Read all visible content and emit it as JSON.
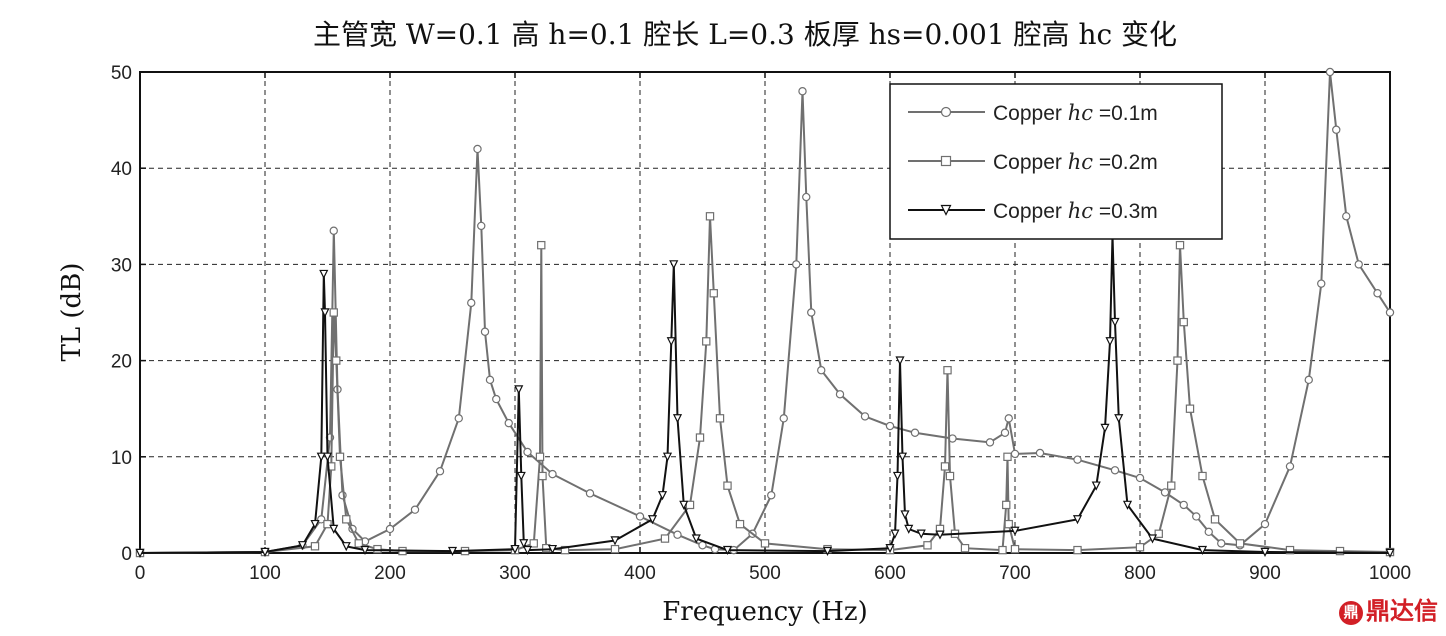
{
  "chart_data": {
    "type": "line",
    "title": "主管宽 W=0.1 高 h=0.1 腔长 L=0.3 板厚 hs=0.001 腔高 hc 变化",
    "xlabel": "Frequency (Hz)",
    "ylabel": "TL (dB)",
    "xlim": [
      0,
      1000
    ],
    "ylim": [
      0,
      50
    ],
    "xticks": [
      "0",
      "100",
      "200",
      "300",
      "400",
      "500",
      "600",
      "700",
      "800",
      "900",
      "1000"
    ],
    "yticks": [
      "0",
      "10",
      "20",
      "30",
      "40",
      "50"
    ],
    "grid": true,
    "legend_position": "top-right",
    "series": [
      {
        "name": "Copper hc =0.1m",
        "legend_prefix": "Copper ",
        "legend_var": "hc",
        "legend_suffix": " =0.1m",
        "marker": "circle",
        "color": "#707070",
        "x": [
          0,
          100,
          130,
          145,
          152,
          155,
          158,
          162,
          170,
          180,
          200,
          220,
          240,
          255,
          265,
          270,
          273,
          276,
          280,
          285,
          295,
          310,
          330,
          360,
          400,
          430,
          450,
          460,
          475,
          490,
          505,
          515,
          525,
          530,
          533,
          537,
          545,
          560,
          580,
          600,
          620,
          650,
          680,
          692,
          695,
          700,
          720,
          750,
          780,
          800,
          820,
          835,
          845,
          855,
          865,
          880,
          900,
          920,
          935,
          945,
          952,
          957,
          965,
          975,
          990,
          1000
        ],
        "y": [
          0,
          0.1,
          0.8,
          3.5,
          12,
          33.5,
          17,
          6,
          2.5,
          1.2,
          2.5,
          4.5,
          8.5,
          14,
          26,
          42,
          34,
          23,
          18,
          16,
          13.5,
          10.5,
          8.2,
          6.2,
          3.8,
          1.9,
          0.8,
          0.4,
          0.3,
          2,
          6,
          14,
          30,
          48,
          37,
          25,
          19,
          16.5,
          14.2,
          13.2,
          12.5,
          11.9,
          11.5,
          12.5,
          14,
          10.3,
          10.4,
          9.7,
          8.6,
          7.8,
          6.3,
          5,
          3.8,
          2.2,
          1,
          0.8,
          3,
          9,
          18,
          28,
          50,
          44,
          35,
          30,
          27,
          25
        ]
      },
      {
        "name": "Copper hc =0.2m",
        "legend_prefix": "Copper ",
        "legend_var": "hc",
        "legend_suffix": " =0.2m",
        "marker": "square",
        "color": "#707070",
        "x": [
          0,
          100,
          140,
          150,
          153,
          155,
          157,
          160,
          165,
          175,
          190,
          210,
          260,
          300,
          315,
          320,
          321,
          322,
          325,
          340,
          380,
          420,
          440,
          448,
          453,
          456,
          459,
          464,
          470,
          480,
          500,
          550,
          600,
          630,
          640,
          644,
          646,
          648,
          652,
          660,
          690,
          693,
          694,
          695,
          700,
          750,
          800,
          815,
          825,
          830,
          832,
          835,
          840,
          850,
          860,
          880,
          920,
          960,
          1000
        ],
        "y": [
          0,
          0.1,
          0.7,
          3,
          9,
          25,
          20,
          10,
          3.5,
          1,
          0.4,
          0.2,
          0.2,
          0.3,
          1,
          10,
          32,
          8,
          0.5,
          0.3,
          0.4,
          1.5,
          5,
          12,
          22,
          35,
          27,
          14,
          7,
          3,
          1,
          0.4,
          0.3,
          0.8,
          2.5,
          9,
          19,
          8,
          2,
          0.5,
          0.3,
          5,
          10,
          3,
          0.4,
          0.3,
          0.6,
          2,
          7,
          20,
          32,
          24,
          15,
          8,
          3.5,
          1,
          0.3,
          0.2,
          0.1
        ]
      },
      {
        "name": "Copper hc =0.3m",
        "legend_prefix": "Copper ",
        "legend_var": "hc",
        "legend_suffix": " =0.3m",
        "marker": "triangle-down",
        "color": "#111111",
        "x": [
          0,
          100,
          130,
          140,
          145,
          147,
          148,
          150,
          155,
          165,
          180,
          250,
          300,
          303,
          305,
          307,
          310,
          330,
          380,
          410,
          418,
          422,
          425,
          427,
          430,
          435,
          445,
          470,
          550,
          600,
          604,
          606,
          608,
          610,
          612,
          615,
          625,
          640,
          700,
          750,
          765,
          772,
          776,
          778,
          780,
          783,
          790,
          810,
          850,
          900,
          1000
        ],
        "y": [
          0,
          0.1,
          0.8,
          3,
          10,
          29,
          25,
          10,
          2.5,
          0.7,
          0.3,
          0.2,
          0.4,
          17,
          8,
          1,
          0.3,
          0.4,
          1.3,
          3.5,
          6,
          10,
          22,
          30,
          14,
          5,
          1.5,
          0.3,
          0.2,
          0.5,
          2,
          8,
          20,
          10,
          4,
          2.5,
          2,
          1.9,
          2.3,
          3.5,
          7,
          13,
          22,
          33,
          24,
          14,
          5,
          1.5,
          0.3,
          0.1,
          0
        ]
      }
    ]
  },
  "watermark": {
    "mark": "鼎",
    "text": "鼎达信"
  }
}
